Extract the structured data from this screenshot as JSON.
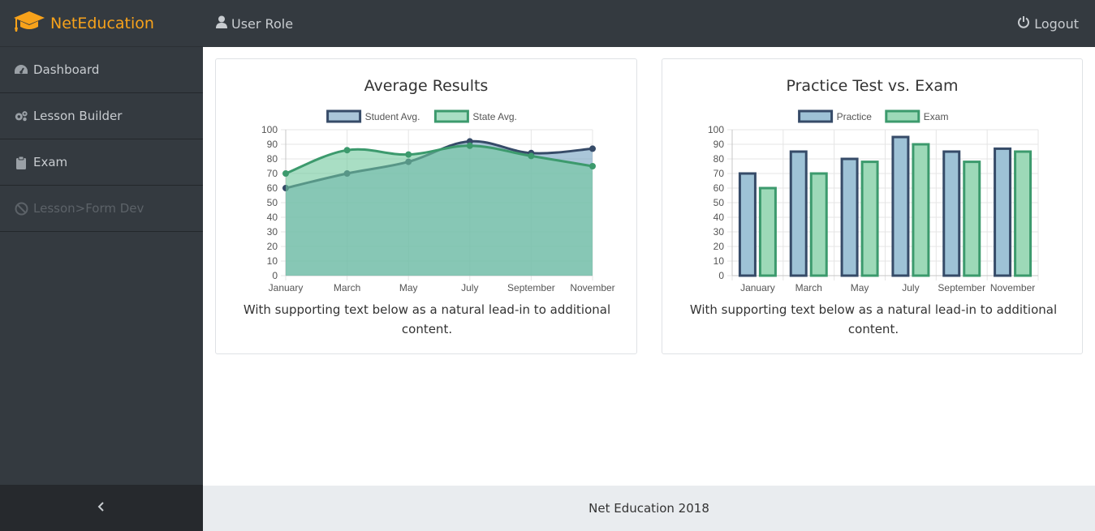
{
  "brand": {
    "name": "NetEducation",
    "color": "#f7a21b",
    "icon": "graduation-cap-icon"
  },
  "sidebar": {
    "items": [
      {
        "label": "Dashboard",
        "icon": "dashboard-icon",
        "disabled": false
      },
      {
        "label": "Lesson Builder",
        "icon": "gears-icon",
        "disabled": false
      },
      {
        "label": "Exam",
        "icon": "clipboard-icon",
        "disabled": false
      },
      {
        "label": "Lesson>Form Dev",
        "icon": "ban-icon",
        "disabled": true
      }
    ],
    "toggle_icon": "chevron-left-icon"
  },
  "topbar": {
    "user_label": "User Role",
    "user_icon": "user-icon",
    "logout_label": "Logout",
    "logout_icon": "power-icon"
  },
  "cards": [
    {
      "title": "Average Results",
      "text": "With supporting text below as a natural lead-in to additional content."
    },
    {
      "title": "Practice Test vs. Exam",
      "text": "With supporting text below as a natural lead-in to additional content."
    }
  ],
  "footer": {
    "text": "Net Education 2018"
  },
  "chart_data": [
    {
      "type": "area",
      "title": "Average Results",
      "categories": [
        "January",
        "March",
        "May",
        "July",
        "September",
        "November"
      ],
      "ylim": [
        0,
        100
      ],
      "yticks": [
        0,
        10,
        20,
        30,
        40,
        50,
        60,
        70,
        80,
        90,
        100
      ],
      "grid": true,
      "legend": "top",
      "series": [
        {
          "name": "Student Avg.",
          "values": [
            60,
            70,
            78,
            92,
            84,
            87
          ],
          "stroke": "#364b68",
          "fill": "rgba(124,168,196,0.65)"
        },
        {
          "name": "State Avg.",
          "values": [
            70,
            86,
            83,
            89,
            82,
            75
          ],
          "stroke": "#3c9a6d",
          "fill": "rgba(112,200,156,0.6)"
        }
      ]
    },
    {
      "type": "bar",
      "title": "Practice Test vs. Exam",
      "categories": [
        "January",
        "March",
        "May",
        "July",
        "September",
        "November"
      ],
      "ylim": [
        0,
        100
      ],
      "yticks": [
        0,
        10,
        20,
        30,
        40,
        50,
        60,
        70,
        80,
        90,
        100
      ],
      "grid": true,
      "legend": "top",
      "series": [
        {
          "name": "Practice",
          "values": [
            70,
            85,
            80,
            95,
            85,
            87
          ],
          "stroke": "#364b68",
          "fill": "#9ec2d6"
        },
        {
          "name": "Exam",
          "values": [
            60,
            70,
            78,
            90,
            78,
            85
          ],
          "stroke": "#3c9a6d",
          "fill": "#9dd9b8"
        }
      ]
    }
  ]
}
